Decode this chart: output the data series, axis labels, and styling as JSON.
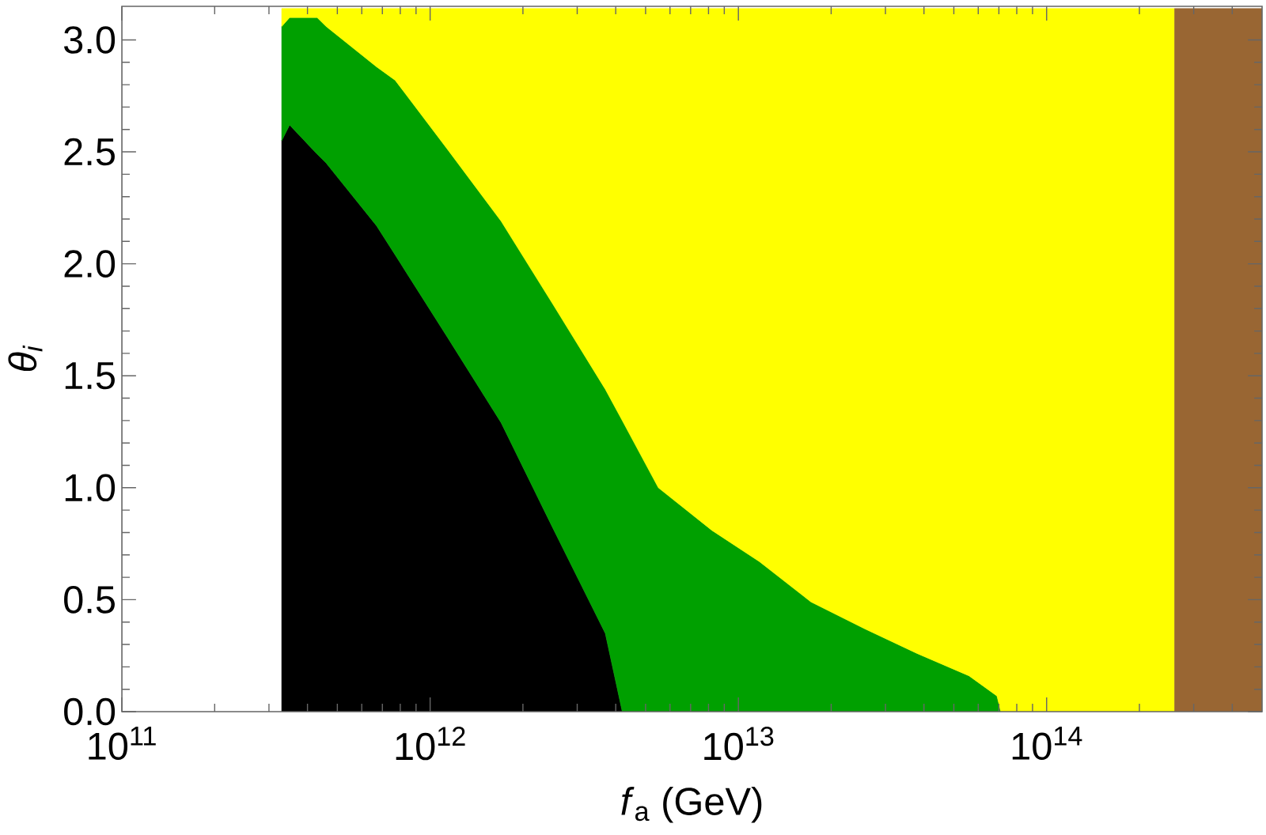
{
  "chart_data": {
    "type": "area",
    "xlabel": "*f*$_{a}$ (GeV)",
    "ylabel": "θ$_{i}$",
    "log": "x",
    "stacked": true,
    "x": [
      330000000000.0,
      350000000000.0,
      430000000000.0,
      460000000000.0,
      670000000000.0,
      770000000000.0,
      1140000000000.0,
      1700000000000.0,
      2500000000000.0,
      3700000000000.0,
      4200000000000.0,
      5500000000000.0,
      8200000000000.0,
      11700000000000.0,
      17200000000000.0,
      25700000000000.0,
      38000000000000.0,
      56000000000000.0,
      69000000000000.0,
      71000000000000.0,
      260000000000000.0,
      260000000000000.0,
      500000000000000.0
    ],
    "series": [
      {
        "color": "#000000",
        "values": [
          2.55,
          2.62,
          2.49,
          2.45,
          2.17,
          2.04,
          1.67,
          1.29,
          0.82,
          0.35,
          0,
          null,
          null,
          null,
          null,
          null,
          null,
          null,
          null,
          null,
          null,
          null,
          null
        ]
      },
      {
        "color": "#00a000",
        "values": [
          0.51,
          0.48,
          0.61,
          0.61,
          0.71,
          0.78,
          0.84,
          0.9,
          1.0,
          1.09,
          1.3,
          1.0,
          0.81,
          0.67,
          0.49,
          0.37,
          0.26,
          0.16,
          0.07,
          0,
          null,
          null,
          null
        ]
      },
      {
        "color": "#ffff00",
        "values": [
          0.08,
          0.04,
          0.04,
          0.08,
          0.26,
          0.32,
          0.63,
          0.95,
          1.32,
          1.7,
          1.84,
          2.14,
          2.33,
          2.47,
          2.65,
          2.77,
          2.88,
          2.98,
          3.07,
          3.14,
          3.14,
          null,
          null
        ]
      },
      {
        "color": "#996633",
        "values": [
          null,
          null,
          null,
          null,
          null,
          null,
          null,
          null,
          null,
          null,
          null,
          null,
          null,
          null,
          null,
          null,
          null,
          null,
          null,
          null,
          null,
          3.14,
          3.14
        ]
      }
    ],
    "xlim": [
      100000000000.0,
      500000000000000.0
    ],
    "ylim": [
      0,
      3.15
    ],
    "xticks": [
      {
        "value": 100000000000.0,
        "label": "10$^{11}$"
      },
      {
        "value": 1000000000000.0,
        "label": "10$^{12}$"
      },
      {
        "value": 10000000000000.0,
        "label": "10$^{13}$"
      },
      {
        "value": 100000000000000.0,
        "label": "10$^{14}$"
      }
    ],
    "yticks": [
      {
        "value": 0,
        "label": "0.0"
      },
      {
        "value": 0.5,
        "label": "0.5"
      },
      {
        "value": 1,
        "label": "1.0"
      },
      {
        "value": 1.5,
        "label": "1.5"
      },
      {
        "value": 2,
        "label": "2.0"
      },
      {
        "value": 2.5,
        "label": "2.5"
      },
      {
        "value": 3,
        "label": "3.0"
      }
    ]
  }
}
